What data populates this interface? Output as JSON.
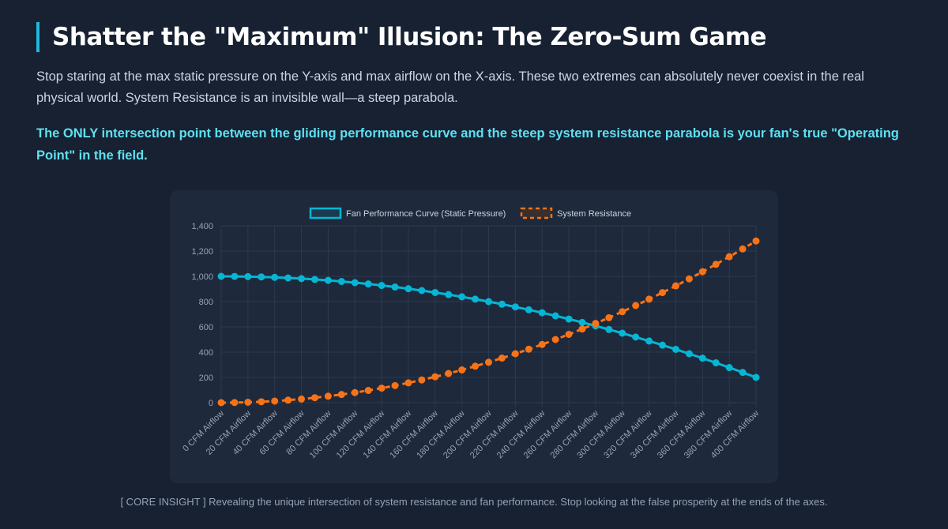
{
  "header": {
    "title": "Shatter the \"Maximum\" Illusion: The Zero-Sum Game"
  },
  "description": "Stop staring at the max static pressure on the Y-axis and max airflow on the X-axis. These two extremes can absolutely never coexist in the real physical world. System Resistance is an invisible wall—a steep parabola.",
  "highlight": "The ONLY intersection point between the gliding performance curve and the steep system resistance parabola is your fan's true \"Operating Point\" in the field.",
  "caption": "[ CORE INSIGHT ] Revealing the unique intersection of system resistance and fan performance. Stop looking at the false prosperity at the ends of the axes.",
  "chart_data": {
    "type": "line",
    "x": [
      0,
      10,
      20,
      30,
      40,
      50,
      60,
      70,
      80,
      90,
      100,
      110,
      120,
      130,
      140,
      150,
      160,
      170,
      180,
      190,
      200,
      210,
      220,
      230,
      240,
      250,
      260,
      270,
      280,
      290,
      300,
      310,
      320,
      330,
      340,
      350,
      360,
      370,
      380,
      390,
      400
    ],
    "x_tick_labels": [
      "0 CFM Airflow",
      "20 CFM Airflow",
      "40 CFM Airflow",
      "60 CFM Airflow",
      "80 CFM Airflow",
      "100 CFM Airflow",
      "120 CFM Airflow",
      "140 CFM Airflow",
      "160 CFM Airflow",
      "180 CFM Airflow",
      "200 CFM Airflow",
      "220 CFM Airflow",
      "240 CFM Airflow",
      "260 CFM Airflow",
      "280 CFM Airflow",
      "300 CFM Airflow",
      "320 CFM Airflow",
      "340 CFM Airflow",
      "360 CFM Airflow",
      "380 CFM Airflow",
      "400 CFM Airflow"
    ],
    "y_ticks": [
      "0",
      "200",
      "400",
      "600",
      "800",
      "1,000",
      "1,200",
      "1,400"
    ],
    "ylim": [
      0,
      1400
    ],
    "grid": true,
    "legend_position": "top",
    "series": [
      {
        "name": "Fan Performance Curve (Static Pressure)",
        "color": "#06b6d4",
        "dashed": false,
        "values": [
          1000,
          999.5,
          998,
          995.5,
          992,
          987.5,
          982,
          975.5,
          968,
          959.5,
          950,
          939.5,
          928,
          915.5,
          902,
          887.5,
          872,
          855.5,
          838,
          819.5,
          800,
          779.5,
          758,
          735.5,
          712,
          687.5,
          662,
          635.5,
          608,
          579.5,
          550,
          519.5,
          488,
          455.5,
          422,
          387.5,
          352,
          315.5,
          278,
          239.5,
          200
        ]
      },
      {
        "name": "System Resistance",
        "color": "#f97316",
        "dashed": true,
        "values": [
          0,
          0.8,
          3.2,
          7.2,
          12.8,
          20,
          28.8,
          39.2,
          51.2,
          64.8,
          80,
          96.8,
          115.2,
          135.2,
          156.8,
          180,
          204.8,
          231.2,
          259.2,
          288.8,
          320,
          352.8,
          387.2,
          423.2,
          460.8,
          500,
          540.8,
          583.2,
          627.2,
          672.8,
          720,
          768.8,
          819.2,
          871.2,
          924.8,
          980,
          1036.8,
          1095.2,
          1155.2,
          1216.8,
          1280
        ]
      }
    ]
  }
}
